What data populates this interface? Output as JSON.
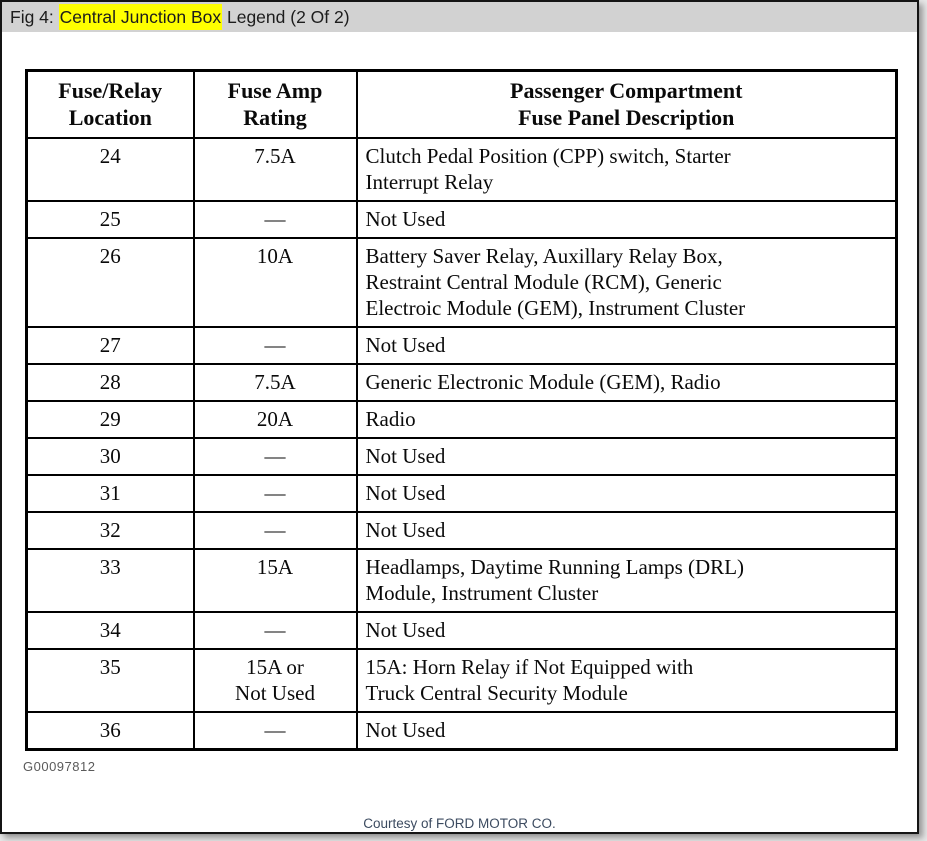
{
  "window": {
    "title_prefix": "Fig 4: ",
    "title_highlight": "Central Junction Box",
    "title_suffix": " Legend (2 Of 2)",
    "highlight_color": "#ffff00",
    "titlebar_bg": "#d2d2d2"
  },
  "table": {
    "columns": [
      "Fuse/Relay\nLocation",
      "Fuse Amp\nRating",
      "Passenger Compartment\nFuse Panel Description"
    ],
    "rows": [
      {
        "location": "24",
        "rating": "7.5A",
        "description": "Clutch Pedal Position (CPP) switch, Starter\nInterrupt Relay"
      },
      {
        "location": "25",
        "rating": "—",
        "description": "Not Used"
      },
      {
        "location": "26",
        "rating": "10A",
        "description": "Battery Saver Relay, Auxillary Relay Box,\nRestraint Central Module (RCM), Generic\nElectroic Module (GEM), Instrument Cluster"
      },
      {
        "location": "27",
        "rating": "—",
        "description": "Not Used"
      },
      {
        "location": "28",
        "rating": "7.5A",
        "description": "Generic Electronic Module (GEM), Radio"
      },
      {
        "location": "29",
        "rating": "20A",
        "description": "Radio"
      },
      {
        "location": "30",
        "rating": "—",
        "description": "Not Used"
      },
      {
        "location": "31",
        "rating": "—",
        "description": "Not Used"
      },
      {
        "location": "32",
        "rating": "—",
        "description": "Not Used"
      },
      {
        "location": "33",
        "rating": "15A",
        "description": "Headlamps, Daytime Running Lamps (DRL)\nModule, Instrument Cluster"
      },
      {
        "location": "34",
        "rating": "—",
        "description": "Not Used"
      },
      {
        "location": "35",
        "rating": "15A or\nNot Used",
        "description": "15A: Horn Relay if Not Equipped with\nTruck Central Security Module"
      },
      {
        "location": "36",
        "rating": "—",
        "description": "Not Used"
      }
    ]
  },
  "figure_code": "G00097812",
  "footer": {
    "text": "Courtesy of FORD MOTOR CO.",
    "color": "#3c4b60"
  }
}
